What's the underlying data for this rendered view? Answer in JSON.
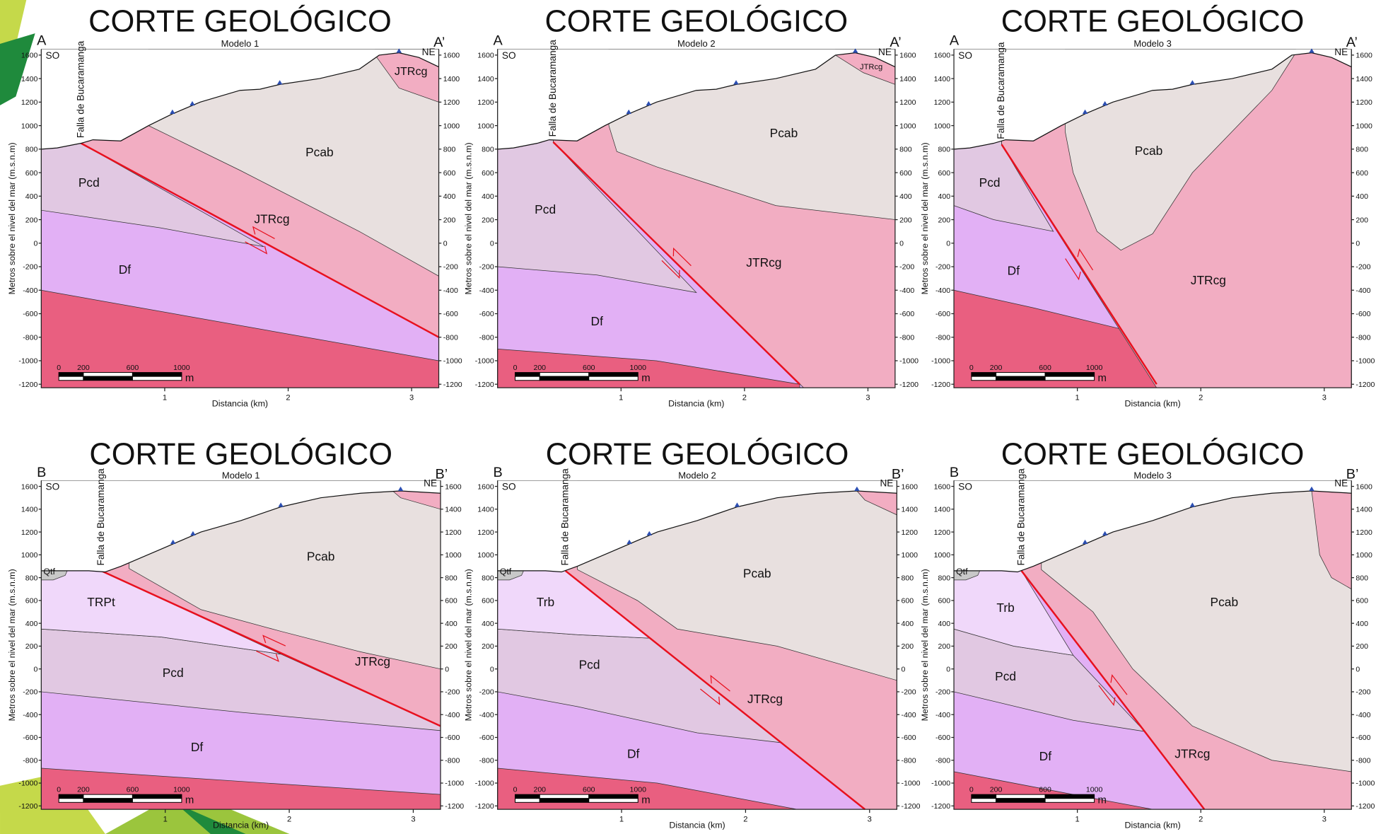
{
  "panels": [
    {
      "title": "CORTE GEOLÓGICO",
      "model": "Modelo 1",
      "start": "A",
      "end": "A’",
      "sw": "SO",
      "ne": "NE",
      "fault": "Falla de Bucaramanga",
      "units": [
        "Pcd",
        "Pcab",
        "JTRcg",
        "Df",
        "JTRcg"
      ]
    },
    {
      "title": "CORTE GEOLÓGICO",
      "model": "Modelo 2",
      "start": "A",
      "end": "A’",
      "sw": "SO",
      "ne": "NE",
      "fault": "Falla de Bucaramanga",
      "units": [
        "Pcd",
        "Pcab",
        "JTRcg",
        "Df",
        "JTRcg"
      ]
    },
    {
      "title": "CORTE GEOLÓGICO",
      "model": "Modelo 3",
      "start": "A",
      "end": "A’",
      "sw": "SO",
      "ne": "NE",
      "fault": "Falla de Bucaramanga",
      "units": [
        "Pcd",
        "Pcab",
        "JTRcg",
        "Df"
      ]
    },
    {
      "title": "CORTE GEOLÓGICO",
      "model": "Modelo 1",
      "start": "B",
      "end": "B’",
      "sw": "SO",
      "ne": "NE",
      "fault": "Falla de Bucaramanga",
      "units": [
        "Qtf",
        "TRPt",
        "Pcab",
        "JTRcg",
        "Pcd",
        "Df"
      ]
    },
    {
      "title": "CORTE GEOLÓGICO",
      "model": "Modelo 2",
      "start": "B",
      "end": "B’",
      "sw": "SO",
      "ne": "NE",
      "fault": "Falla de Bucaramanga",
      "units": [
        "Qtf",
        "Trb",
        "Pcab",
        "Pcd",
        "JTRcg",
        "Df"
      ]
    },
    {
      "title": "CORTE GEOLÓGICO",
      "model": "Modelo 3",
      "start": "B",
      "end": "B’",
      "sw": "SO",
      "ne": "NE",
      "fault": "Falla de Bucaramanga",
      "units": [
        "Qtf",
        "Trb",
        "Pcab",
        "Pcd",
        "Df",
        "JTRcg"
      ]
    }
  ],
  "y_axis_label": "Metros sobre el nivel del mar (m.s.n.m)",
  "x_axis_label": "Distancia (km)",
  "yticks": [
    1600,
    1400,
    1200,
    1000,
    800,
    600,
    400,
    200,
    0,
    -200,
    -400,
    -600,
    -800,
    -1000,
    -1200
  ],
  "xticks": [
    1,
    2,
    3
  ],
  "scale_labels": [
    0,
    200,
    600,
    1000
  ],
  "scale_unit": "m"
}
